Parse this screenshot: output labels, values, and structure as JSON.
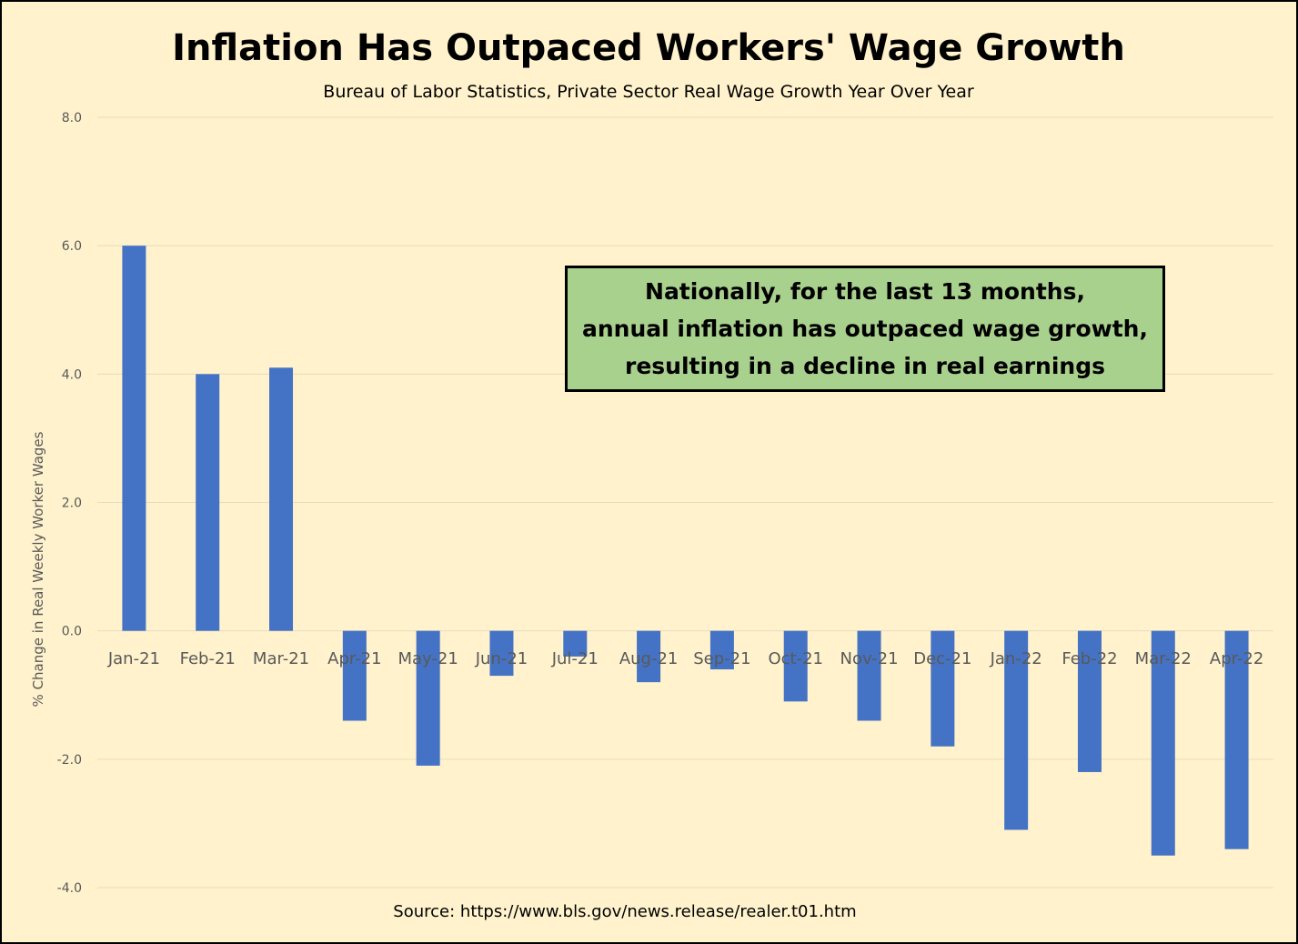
{
  "chart_data": {
    "type": "bar",
    "title": "Inflation Has Outpaced Workers' Wage Growth",
    "subtitle": "Bureau of Labor Statistics, Private Sector Real Wage Growth Year Over Year",
    "ylabel": "% Change in Real Weekly Worker Wages",
    "xlabel": "",
    "categories": [
      "Jan-21",
      "Feb-21",
      "Mar-21",
      "Apr-21",
      "May-21",
      "Jun-21",
      "Jul-21",
      "Aug-21",
      "Sep-21",
      "Oct-21",
      "Nov-21",
      "Dec-21",
      "Jan-22",
      "Feb-22",
      "Mar-22",
      "Apr-22"
    ],
    "values": [
      6.0,
      4.0,
      4.1,
      -1.4,
      -2.1,
      -0.7,
      -0.4,
      -0.8,
      -0.6,
      -1.1,
      -1.4,
      -1.8,
      -3.1,
      -2.2,
      -3.5,
      -3.4
    ],
    "ylim": [
      -4.0,
      8.0
    ],
    "yticks": [
      "8.0",
      "6.0",
      "4.0",
      "2.0",
      "0.0",
      "-2.0",
      "-4.0"
    ],
    "grid": true,
    "bar_color": "#4472c4",
    "annotation": [
      "Nationally, for the last 13 months,",
      "annual inflation has outpaced wage growth,",
      "resulting in a decline in real earnings"
    ],
    "source": "Source:  https://www.bls.gov/news.release/realer.t01.htm"
  },
  "colors": {
    "background": "#fff2cc",
    "callout_background": "#a9d18e",
    "gridline": "#e6dcc0"
  }
}
